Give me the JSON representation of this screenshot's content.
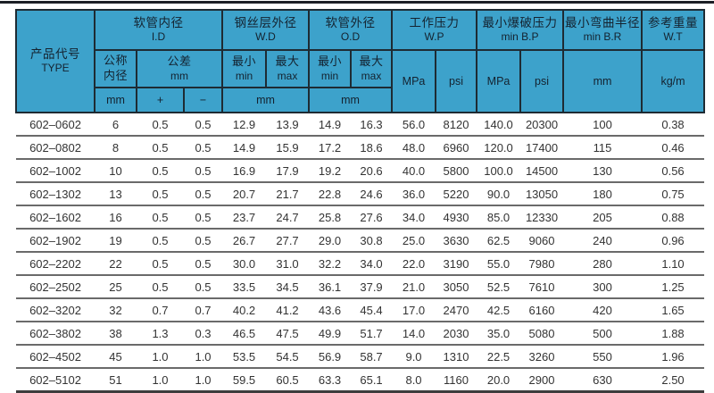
{
  "table": {
    "header": {
      "type": {
        "zh": "产品代号",
        "en": "TYPE"
      },
      "id": {
        "zh": "软管内径",
        "en": "I.D"
      },
      "wd": {
        "zh": "钢丝层外径",
        "en": "W.D"
      },
      "od": {
        "zh": "软管外径",
        "en": "O.D"
      },
      "wp": {
        "zh": "工作压力",
        "en": "W.P"
      },
      "bp": {
        "zh": "最小爆破压力",
        "en": "min B.P"
      },
      "br": {
        "zh": "最小弯曲半径",
        "en": "min B.R"
      },
      "wt": {
        "zh": "参考重量",
        "en": "W.T"
      },
      "sub": {
        "nominal_l1": "公称",
        "nominal_l2": "内径",
        "tol_l1": "公差",
        "tol_l2": "mm",
        "min_zh": "最小",
        "min_en": "min",
        "max_zh": "最大",
        "max_en": "max",
        "id_unit": "mm",
        "plus": "+",
        "minus": "−",
        "wd_unit": "mm",
        "od_unit": "mm",
        "mpa": "MPa",
        "psi": "psi",
        "br_unit": "mm",
        "wt_unit": "kg/m"
      }
    },
    "rows": [
      [
        "602–0602",
        "6",
        "0.5",
        "0.5",
        "12.9",
        "13.9",
        "14.9",
        "16.3",
        "56.0",
        "8120",
        "140.0",
        "20300",
        "100",
        "0.38"
      ],
      [
        "602–0802",
        "8",
        "0.5",
        "0.5",
        "14.9",
        "15.9",
        "17.2",
        "18.6",
        "48.0",
        "6960",
        "120.0",
        "17400",
        "115",
        "0.46"
      ],
      [
        "602–1002",
        "10",
        "0.5",
        "0.5",
        "16.9",
        "17.9",
        "19.2",
        "20.6",
        "40.0",
        "5800",
        "100.0",
        "14500",
        "130",
        "0.56"
      ],
      [
        "602–1302",
        "13",
        "0.5",
        "0.5",
        "20.7",
        "21.7",
        "22.8",
        "24.6",
        "36.0",
        "5220",
        "90.0",
        "13050",
        "180",
        "0.75"
      ],
      [
        "602–1602",
        "16",
        "0.5",
        "0.5",
        "23.7",
        "24.7",
        "25.8",
        "27.6",
        "34.0",
        "4930",
        "85.0",
        "12330",
        "205",
        "0.88"
      ],
      [
        "602–1902",
        "19",
        "0.5",
        "0.5",
        "26.7",
        "27.7",
        "29.0",
        "30.8",
        "25.0",
        "3630",
        "62.5",
        "9060",
        "240",
        "0.96"
      ],
      [
        "602–2202",
        "22",
        "0.5",
        "0.5",
        "30.0",
        "31.0",
        "32.2",
        "34.0",
        "22.0",
        "3190",
        "55.0",
        "7980",
        "280",
        "1.10"
      ],
      [
        "602–2502",
        "25",
        "0.5",
        "0.5",
        "33.5",
        "34.5",
        "36.1",
        "37.9",
        "21.0",
        "3050",
        "52.5",
        "7610",
        "300",
        "1.25"
      ],
      [
        "602–3202",
        "32",
        "0.7",
        "0.7",
        "40.2",
        "41.2",
        "43.6",
        "45.4",
        "17.0",
        "2470",
        "42.5",
        "6160",
        "420",
        "1.65"
      ],
      [
        "602–3802",
        "38",
        "1.3",
        "0.3",
        "46.5",
        "47.5",
        "49.9",
        "51.7",
        "14.0",
        "2030",
        "35.0",
        "5080",
        "500",
        "1.88"
      ],
      [
        "602–4502",
        "45",
        "1.0",
        "1.0",
        "53.5",
        "54.5",
        "56.9",
        "58.7",
        "9.0",
        "1310",
        "22.5",
        "3260",
        "550",
        "1.96"
      ],
      [
        "602–5102",
        "51",
        "1.0",
        "1.0",
        "59.5",
        "60.5",
        "63.3",
        "65.1",
        "8.0",
        "1160",
        "20.0",
        "2900",
        "630",
        "2.50"
      ]
    ]
  },
  "colors": {
    "header_bg": "#3da2cb",
    "header_text": "#14222f",
    "header_border": "#1e2b33",
    "body_text": "#333333",
    "row_line": "#6a6a6a",
    "bottom_line": "#3d3d3d",
    "top_strip": "#1c1f26"
  }
}
